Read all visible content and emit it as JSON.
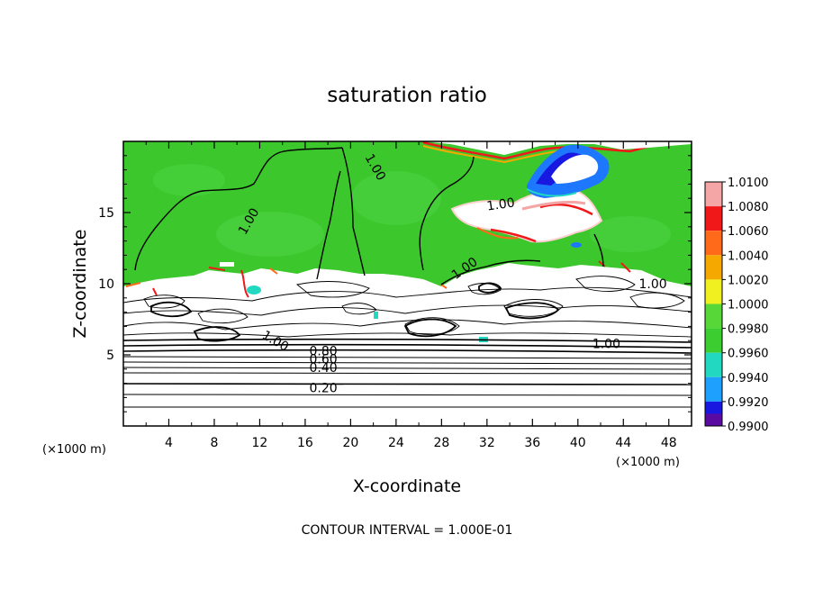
{
  "chart_data": {
    "type": "heatmap",
    "title": "saturation ratio",
    "xlabel": "X-coordinate",
    "ylabel": "Z-coordinate",
    "x_unit": "(×1000 m)",
    "y_unit": "(×1000 m)",
    "xlim": [
      0,
      50
    ],
    "ylim": [
      0,
      20
    ],
    "x_ticks": [
      4,
      8,
      12,
      16,
      20,
      24,
      28,
      32,
      36,
      40,
      44,
      48
    ],
    "y_ticks": [
      5,
      10,
      15
    ],
    "contour_interval_text": "CONTOUR INTERVAL = 1.000E-01",
    "colorbar": {
      "labels": [
        "1.0100",
        "1.0080",
        "1.0060",
        "1.0040",
        "1.0020",
        "1.0000",
        "0.9980",
        "0.9960",
        "0.9940",
        "0.9920",
        "0.9900"
      ],
      "colors": [
        "#f4a6a6",
        "#f01818",
        "#ff6a1a",
        "#f5a800",
        "#f0f020",
        "#58d838",
        "#3cce30",
        "#22d8c0",
        "#1ea0ff",
        "#1818e0",
        "#5a0aa0"
      ]
    },
    "contour_labels": [
      {
        "text": "1.00",
        "x": 11.0,
        "z": 14.4,
        "angle": -60
      },
      {
        "text": "1.00",
        "x": 22.2,
        "z": 18.2,
        "angle": 60
      },
      {
        "text": "1.00",
        "x": 33.2,
        "z": 15.6,
        "angle": -8
      },
      {
        "text": "1.00",
        "x": 30.0,
        "z": 11.1,
        "angle": -35
      },
      {
        "text": "1.00",
        "x": 46.6,
        "z": 10.0,
        "angle": 0
      },
      {
        "text": "1.00",
        "x": 42.5,
        "z": 5.8,
        "angle": 0
      },
      {
        "text": "1.00",
        "x": 13.4,
        "z": 6.0,
        "angle": 30
      },
      {
        "text": "0.80",
        "x": 17.6,
        "z": 5.3,
        "angle": 0
      },
      {
        "text": "0.60",
        "x": 17.6,
        "z": 4.7,
        "angle": 0
      },
      {
        "text": "0.40",
        "x": 17.6,
        "z": 4.1,
        "angle": 0
      },
      {
        "text": "0.20",
        "x": 17.6,
        "z": 2.7,
        "angle": 0
      }
    ]
  }
}
